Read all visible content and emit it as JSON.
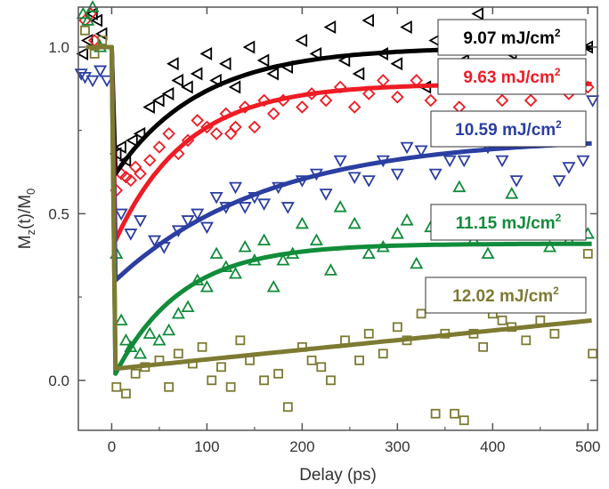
{
  "chart_data": {
    "type": "scatter",
    "title": "",
    "xlabel": "Delay (ps)",
    "ylabel_main": "M",
    "ylabel_sub1": "z",
    "ylabel_mid": "(t)/M",
    "ylabel_sub2": "0",
    "xlim": [
      -35,
      510
    ],
    "ylim": [
      -0.15,
      1.12
    ],
    "xticks": [
      0,
      100,
      200,
      300,
      400,
      500
    ],
    "xtick_labels": [
      "0",
      "100",
      "200",
      "300",
      "400",
      "500"
    ],
    "yticks": [
      0.0,
      0.5,
      1.0
    ],
    "ytick_labels": [
      "0.0",
      "0.5",
      "1.0"
    ],
    "series": [
      {
        "name": "9.07 mJ/cm",
        "name_sup": "2",
        "color": "#000000",
        "marker": "triangle-left",
        "fit": {
          "baseline": 1.0,
          "drop_to": 0.62,
          "recover_to": 1.0,
          "tau": 90
        },
        "points": [
          [
            -30,
            0.98
          ],
          [
            -25,
            1.02
          ],
          [
            -20,
            1.1
          ],
          [
            -15,
            1.08
          ],
          [
            -10,
            1.04
          ],
          [
            5,
            0.68
          ],
          [
            10,
            0.7
          ],
          [
            15,
            0.66
          ],
          [
            22,
            0.72
          ],
          [
            30,
            0.74
          ],
          [
            40,
            0.82
          ],
          [
            50,
            0.84
          ],
          [
            60,
            0.86
          ],
          [
            65,
            0.95
          ],
          [
            70,
            0.9
          ],
          [
            80,
            0.88
          ],
          [
            90,
            0.92
          ],
          [
            100,
            0.98
          ],
          [
            110,
            0.9
          ],
          [
            120,
            0.95
          ],
          [
            130,
            0.88
          ],
          [
            145,
            1.0
          ],
          [
            160,
            0.96
          ],
          [
            170,
            0.92
          ],
          [
            185,
            0.94
          ],
          [
            200,
            1.02
          ],
          [
            215,
            0.98
          ],
          [
            230,
            1.06
          ],
          [
            245,
            0.96
          ],
          [
            260,
            0.92
          ],
          [
            270,
            1.08
          ],
          [
            285,
            0.98
          ],
          [
            300,
            0.95
          ],
          [
            310,
            1.06
          ],
          [
            330,
            0.88
          ],
          [
            340,
            1.02
          ],
          [
            355,
            1.04
          ],
          [
            370,
            0.96
          ],
          [
            385,
            1.1
          ],
          [
            400,
            1.0
          ],
          [
            420,
            0.98
          ],
          [
            440,
            1.04
          ],
          [
            460,
            1.0
          ],
          [
            480,
            1.06
          ],
          [
            500,
            1.0
          ]
        ]
      },
      {
        "name": "9.63 mJ/cm",
        "name_sup": "2",
        "color": "#ee1c24",
        "marker": "diamond",
        "fit": {
          "baseline": 1.0,
          "drop_to": 0.42,
          "recover_to": 0.89,
          "tau": 75
        },
        "points": [
          [
            -28,
            1.08
          ],
          [
            -22,
            1.1
          ],
          [
            -18,
            1.02
          ],
          [
            5,
            0.57
          ],
          [
            10,
            0.62
          ],
          [
            15,
            0.61
          ],
          [
            20,
            0.6
          ],
          [
            25,
            0.64
          ],
          [
            30,
            0.62
          ],
          [
            40,
            0.66
          ],
          [
            50,
            0.7
          ],
          [
            60,
            0.74
          ],
          [
            70,
            0.68
          ],
          [
            80,
            0.72
          ],
          [
            90,
            0.78
          ],
          [
            100,
            0.76
          ],
          [
            110,
            0.74
          ],
          [
            120,
            0.8
          ],
          [
            125,
            0.74
          ],
          [
            130,
            0.76
          ],
          [
            140,
            0.82
          ],
          [
            150,
            0.76
          ],
          [
            160,
            0.84
          ],
          [
            170,
            0.8
          ],
          [
            180,
            0.84
          ],
          [
            200,
            0.82
          ],
          [
            210,
            0.86
          ],
          [
            225,
            0.84
          ],
          [
            240,
            0.88
          ],
          [
            255,
            0.82
          ],
          [
            270,
            0.86
          ],
          [
            285,
            0.9
          ],
          [
            300,
            0.85
          ],
          [
            320,
            0.9
          ],
          [
            335,
            0.84
          ],
          [
            350,
            0.89
          ],
          [
            365,
            0.82
          ],
          [
            380,
            0.88
          ],
          [
            400,
            0.9
          ],
          [
            410,
            0.84
          ],
          [
            425,
            0.88
          ],
          [
            440,
            0.84
          ],
          [
            460,
            0.9
          ],
          [
            480,
            0.86
          ],
          [
            500,
            0.88
          ]
        ]
      },
      {
        "name": "10.59 mJ/cm",
        "name_sup": "2",
        "color": "#2b3ea1",
        "marker": "triangle-down",
        "fit": {
          "baseline": 1.0,
          "drop_to": 0.3,
          "recover_to": 0.73,
          "tau": 160
        },
        "points": [
          [
            -32,
            0.92
          ],
          [
            -28,
            0.91
          ],
          [
            -20,
            0.9
          ],
          [
            -12,
            0.93
          ],
          [
            -5,
            0.9
          ],
          [
            10,
            0.5
          ],
          [
            20,
            0.44
          ],
          [
            30,
            0.48
          ],
          [
            45,
            0.42
          ],
          [
            55,
            0.4
          ],
          [
            70,
            0.45
          ],
          [
            80,
            0.48
          ],
          [
            90,
            0.5
          ],
          [
            100,
            0.46
          ],
          [
            110,
            0.55
          ],
          [
            120,
            0.52
          ],
          [
            130,
            0.58
          ],
          [
            140,
            0.52
          ],
          [
            150,
            0.55
          ],
          [
            160,
            0.53
          ],
          [
            175,
            0.58
          ],
          [
            185,
            0.52
          ],
          [
            200,
            0.6
          ],
          [
            215,
            0.62
          ],
          [
            225,
            0.56
          ],
          [
            240,
            0.66
          ],
          [
            255,
            0.61
          ],
          [
            270,
            0.6
          ],
          [
            285,
            0.66
          ],
          [
            300,
            0.62
          ],
          [
            310,
            0.7
          ],
          [
            325,
            0.69
          ],
          [
            340,
            0.62
          ],
          [
            355,
            0.66
          ],
          [
            370,
            0.66
          ],
          [
            380,
            0.73
          ],
          [
            395,
            0.7
          ],
          [
            410,
            0.66
          ],
          [
            425,
            0.6
          ],
          [
            440,
            0.73
          ],
          [
            455,
            0.76
          ],
          [
            470,
            0.6
          ],
          [
            480,
            0.64
          ],
          [
            495,
            0.66
          ],
          [
            505,
            0.84
          ]
        ]
      },
      {
        "name": "11.15 mJ/cm",
        "name_sup": "2",
        "color": "#118c3a",
        "marker": "triangle-up",
        "fit": {
          "baseline": 1.0,
          "drop_to": 0.02,
          "recover_to": 0.41,
          "tau": 70
        },
        "points": [
          [
            -30,
            1.1
          ],
          [
            -25,
            1.08
          ],
          [
            -20,
            1.12
          ],
          [
            -12,
            1.0
          ],
          [
            5,
            0.38
          ],
          [
            10,
            0.18
          ],
          [
            15,
            0.12
          ],
          [
            20,
            0.1
          ],
          [
            30,
            0.08
          ],
          [
            40,
            0.14
          ],
          [
            50,
            0.12
          ],
          [
            60,
            0.15
          ],
          [
            70,
            0.2
          ],
          [
            80,
            0.22
          ],
          [
            90,
            0.3
          ],
          [
            100,
            0.28
          ],
          [
            110,
            0.38
          ],
          [
            120,
            0.34
          ],
          [
            130,
            0.32
          ],
          [
            140,
            0.4
          ],
          [
            150,
            0.36
          ],
          [
            160,
            0.42
          ],
          [
            170,
            0.28
          ],
          [
            180,
            0.36
          ],
          [
            190,
            0.38
          ],
          [
            200,
            0.47
          ],
          [
            215,
            0.42
          ],
          [
            230,
            0.33
          ],
          [
            240,
            0.52
          ],
          [
            255,
            0.47
          ],
          [
            270,
            0.38
          ],
          [
            285,
            0.4
          ],
          [
            300,
            0.44
          ],
          [
            310,
            0.48
          ],
          [
            320,
            0.35
          ],
          [
            335,
            0.46
          ],
          [
            350,
            0.44
          ],
          [
            365,
            0.58
          ],
          [
            380,
            0.42
          ],
          [
            395,
            0.38
          ],
          [
            410,
            0.48
          ],
          [
            420,
            0.56
          ],
          [
            440,
            0.46
          ],
          [
            460,
            0.4
          ],
          [
            480,
            0.42
          ],
          [
            500,
            0.44
          ]
        ]
      },
      {
        "name": "12.02 mJ/cm",
        "name_sup": "2",
        "color": "#7d7a32",
        "marker": "square",
        "fit": {
          "baseline": 1.0,
          "drop_to": 0.035,
          "recover_to": 0.18,
          "tau": 0,
          "linear": true
        },
        "points": [
          [
            -28,
            1.05
          ],
          [
            -18,
            0.98
          ],
          [
            -10,
            1.02
          ],
          [
            5,
            -0.02
          ],
          [
            15,
            -0.04
          ],
          [
            25,
            0.02
          ],
          [
            35,
            0.04
          ],
          [
            50,
            0.06
          ],
          [
            60,
            -0.02
          ],
          [
            70,
            0.08
          ],
          [
            85,
            0.05
          ],
          [
            95,
            0.1
          ],
          [
            105,
            0.0
          ],
          [
            115,
            0.04
          ],
          [
            125,
            -0.02
          ],
          [
            135,
            0.12
          ],
          [
            145,
            0.06
          ],
          [
            160,
            0.0
          ],
          [
            175,
            0.02
          ],
          [
            185,
            -0.08
          ],
          [
            200,
            0.1
          ],
          [
            210,
            0.06
          ],
          [
            220,
            0.04
          ],
          [
            230,
            0.0
          ],
          [
            245,
            0.12
          ],
          [
            260,
            0.06
          ],
          [
            270,
            0.14
          ],
          [
            285,
            0.08
          ],
          [
            300,
            0.16
          ],
          [
            310,
            0.12
          ],
          [
            325,
            0.2
          ],
          [
            340,
            -0.1
          ],
          [
            350,
            0.14
          ],
          [
            360,
            -0.1
          ],
          [
            370,
            -0.12
          ],
          [
            380,
            0.14
          ],
          [
            390,
            0.1
          ],
          [
            400,
            0.2
          ],
          [
            410,
            0.18
          ],
          [
            420,
            0.16
          ],
          [
            435,
            0.12
          ],
          [
            450,
            0.18
          ],
          [
            465,
            0.14
          ],
          [
            480,
            0.22
          ],
          [
            500,
            0.38
          ],
          [
            505,
            0.08
          ]
        ]
      }
    ]
  }
}
